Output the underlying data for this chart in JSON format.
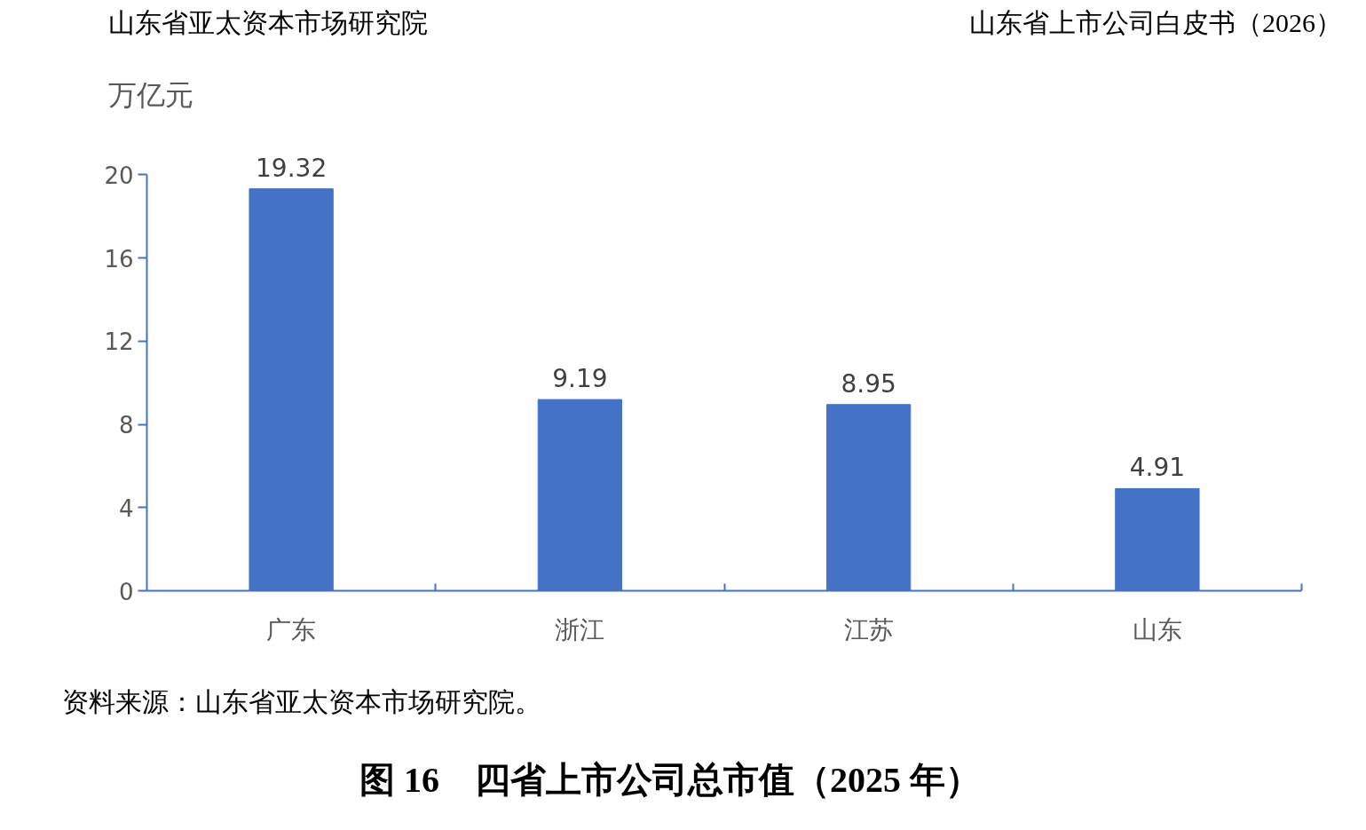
{
  "chart_data": {
    "type": "bar",
    "title": "图 16　四省上市公司总市值（2025 年）",
    "ylabel": "万亿元",
    "categories": [
      "广东",
      "浙江",
      "江苏",
      "山东"
    ],
    "values": [
      19.32,
      9.19,
      8.95,
      4.91
    ],
    "color": "#4472c4",
    "ylim": [
      0,
      20
    ],
    "yticks": [
      0,
      4,
      8,
      12,
      16,
      20
    ],
    "grid": false,
    "data_labels": true,
    "annotations": [
      "山东省亚太资本市场研究院",
      "山东省上市公司白皮书（2026）",
      "资料来源：山东省亚太资本市场研究院。"
    ]
  }
}
